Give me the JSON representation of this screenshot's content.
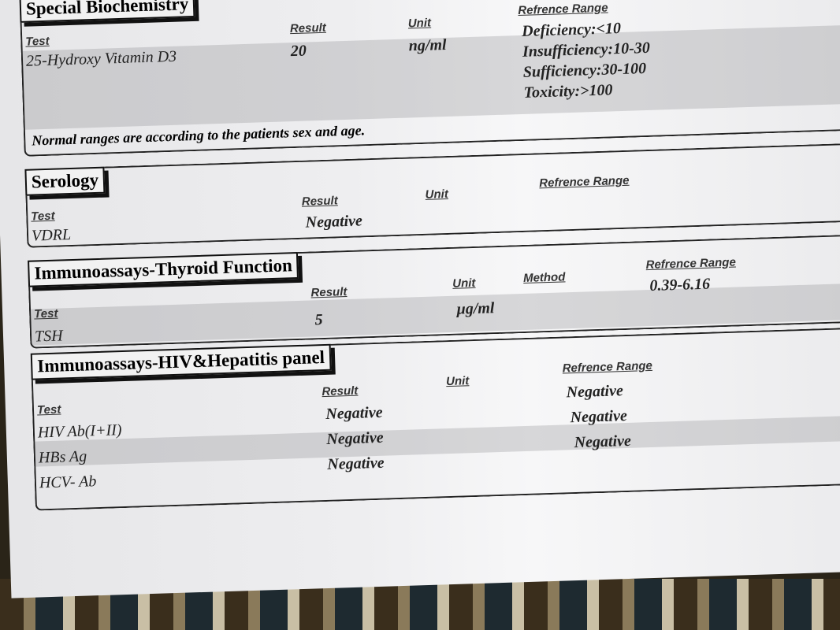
{
  "special_biochemistry": {
    "title": "Special Biochemistry",
    "headers": {
      "test": "Test",
      "result": "Result",
      "unit": "Unit",
      "reference": "Refrence Range"
    },
    "rows": [
      {
        "test": "25-Hydroxy Vitamin D3",
        "result": "20",
        "unit": "ng/ml"
      }
    ],
    "reference_lines": [
      "Deficiency:<10",
      "Insufficiency:10-30",
      "Sufficiency:30-100",
      "Toxicity:>100"
    ],
    "note": "Normal ranges are according to the patients sex and age."
  },
  "serology": {
    "title": "Serology",
    "headers": {
      "test": "Test",
      "result": "Result",
      "unit": "Unit",
      "reference": "Refrence Range"
    },
    "rows": [
      {
        "test": "VDRL",
        "result": "Negative"
      }
    ]
  },
  "thyroid": {
    "title": "Immunoassays-Thyroid Function",
    "headers": {
      "test": "Test",
      "result": "Result",
      "unit": "Unit",
      "method": "Method",
      "reference": "Refrence Range"
    },
    "rows": [
      {
        "test": "TSH",
        "result": "5",
        "unit": "µg/ml",
        "reference": "0.39-6.16"
      }
    ]
  },
  "hiv_hepatitis": {
    "title": "Immunoassays-HIV&Hepatitis panel",
    "headers": {
      "test": "Test",
      "result": "Result",
      "unit": "Unit",
      "reference": "Refrence Range"
    },
    "rows": [
      {
        "test": "HIV Ab(I+II)",
        "result": "Negative",
        "reference": "Negative"
      },
      {
        "test": "HBs Ag",
        "result": "Negative",
        "reference": "Negative"
      },
      {
        "test": "HCV- Ab",
        "result": "Negative",
        "reference": "Negative"
      }
    ]
  }
}
